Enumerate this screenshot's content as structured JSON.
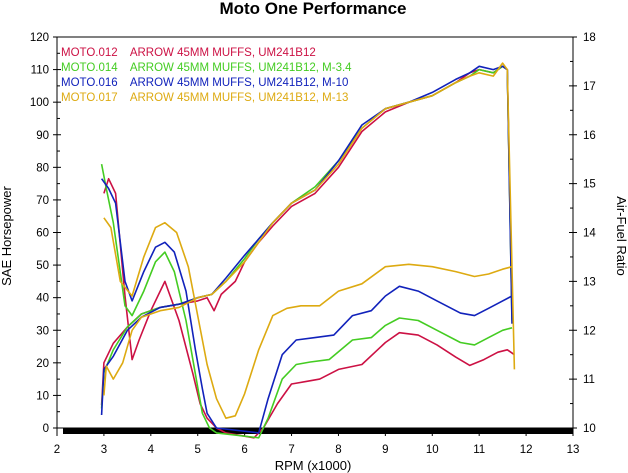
{
  "chart_data": {
    "type": "line",
    "title": "Moto One Performance",
    "xlabel": "RPM (x1000)",
    "ylabel": "SAE Horsepower",
    "y2label": "Air-Fuel Ratio",
    "xlim": [
      2,
      13
    ],
    "ylim": [
      0,
      120
    ],
    "y2lim": [
      10,
      18
    ],
    "x_ticks": [
      "2",
      "3",
      "4",
      "5",
      "6",
      "7",
      "8",
      "9",
      "10",
      "11",
      "12",
      "13"
    ],
    "y_ticks": [
      "0",
      "10",
      "20",
      "30",
      "40",
      "50",
      "60",
      "70",
      "80",
      "90",
      "100",
      "110",
      "120"
    ],
    "y2_ticks": [
      "10",
      "11",
      "12",
      "13",
      "14",
      "15",
      "16",
      "17",
      "18"
    ],
    "grid": false,
    "legend": "top-left",
    "series": [
      {
        "name": "MOTO.012    ARROW 45MM MUFFS, UM241B12",
        "color": "#cc1144",
        "hp": [
          [
            2.95,
            7
          ],
          [
            3.0,
            20
          ],
          [
            3.2,
            26
          ],
          [
            3.5,
            31
          ],
          [
            3.8,
            35
          ],
          [
            4.2,
            37
          ],
          [
            4.6,
            38
          ],
          [
            5.0,
            39
          ],
          [
            5.2,
            40
          ],
          [
            5.35,
            36
          ],
          [
            5.5,
            41
          ],
          [
            5.8,
            45
          ],
          [
            6.0,
            51
          ],
          [
            6.3,
            57
          ],
          [
            6.6,
            62
          ],
          [
            7.0,
            68
          ],
          [
            7.5,
            72
          ],
          [
            8.0,
            80
          ],
          [
            8.5,
            91
          ],
          [
            9.0,
            97
          ],
          [
            9.5,
            100
          ],
          [
            10.0,
            102
          ],
          [
            10.5,
            106
          ],
          [
            10.8,
            109
          ],
          [
            11.0,
            110
          ],
          [
            11.3,
            109
          ],
          [
            11.5,
            111
          ],
          [
            11.6,
            110
          ],
          [
            11.7,
            36
          ]
        ],
        "afr": [
          [
            3.0,
            14.8
          ],
          [
            3.1,
            15.1
          ],
          [
            3.25,
            14.8
          ],
          [
            3.45,
            12.7
          ],
          [
            3.6,
            11.4
          ],
          [
            3.75,
            11.8
          ],
          [
            4.0,
            12.4
          ],
          [
            4.3,
            13.0
          ],
          [
            4.6,
            12.2
          ],
          [
            4.9,
            11.1
          ],
          [
            5.05,
            10.5
          ],
          [
            5.2,
            10.2
          ],
          [
            5.4,
            10.0
          ],
          [
            5.6,
            9.9
          ],
          [
            6.2,
            9.8
          ],
          [
            6.4,
            10.0
          ],
          [
            6.7,
            10.5
          ],
          [
            7.0,
            10.9
          ],
          [
            7.3,
            10.95
          ],
          [
            7.6,
            11.0
          ],
          [
            8.0,
            11.2
          ],
          [
            8.5,
            11.3
          ],
          [
            9.0,
            11.75
          ],
          [
            9.3,
            11.95
          ],
          [
            9.7,
            11.9
          ],
          [
            10.1,
            11.7
          ],
          [
            10.5,
            11.45
          ],
          [
            10.8,
            11.28
          ],
          [
            11.1,
            11.4
          ],
          [
            11.4,
            11.55
          ],
          [
            11.6,
            11.6
          ],
          [
            11.75,
            11.5
          ]
        ]
      },
      {
        "name": "MOTO.014    ARROW 45MM MUFFS, UM241B12, M-3.4",
        "color": "#44cc22",
        "hp": [
          [
            2.95,
            6
          ],
          [
            3.0,
            17
          ],
          [
            3.2,
            24
          ],
          [
            3.5,
            31
          ],
          [
            3.8,
            35
          ],
          [
            4.2,
            37
          ],
          [
            4.6,
            38
          ],
          [
            5.0,
            40
          ],
          [
            5.3,
            41
          ],
          [
            5.6,
            45
          ],
          [
            6.0,
            52
          ],
          [
            6.3,
            58
          ],
          [
            6.6,
            63
          ],
          [
            7.0,
            69
          ],
          [
            7.5,
            74
          ],
          [
            8.0,
            82
          ],
          [
            8.5,
            92
          ],
          [
            9.0,
            98
          ],
          [
            9.5,
            100
          ],
          [
            10.0,
            102
          ],
          [
            10.5,
            106
          ],
          [
            10.8,
            108
          ],
          [
            11.0,
            110
          ],
          [
            11.3,
            109
          ],
          [
            11.5,
            111
          ],
          [
            11.6,
            110
          ],
          [
            11.7,
            33
          ]
        ],
        "afr": [
          [
            2.95,
            15.4
          ],
          [
            3.05,
            14.9
          ],
          [
            3.2,
            14.2
          ],
          [
            3.45,
            12.5
          ],
          [
            3.6,
            12.3
          ],
          [
            3.85,
            12.8
          ],
          [
            4.1,
            13.4
          ],
          [
            4.3,
            13.6
          ],
          [
            4.5,
            13.2
          ],
          [
            4.75,
            12.2
          ],
          [
            4.95,
            11.1
          ],
          [
            5.1,
            10.3
          ],
          [
            5.25,
            10.0
          ],
          [
            5.4,
            9.9
          ],
          [
            6.3,
            9.8
          ],
          [
            6.5,
            10.2
          ],
          [
            6.8,
            11.0
          ],
          [
            7.1,
            11.3
          ],
          [
            7.4,
            11.35
          ],
          [
            7.8,
            11.4
          ],
          [
            8.3,
            11.8
          ],
          [
            8.7,
            11.85
          ],
          [
            9.0,
            12.1
          ],
          [
            9.3,
            12.25
          ],
          [
            9.7,
            12.2
          ],
          [
            10.1,
            12.0
          ],
          [
            10.6,
            11.75
          ],
          [
            10.9,
            11.7
          ],
          [
            11.2,
            11.85
          ],
          [
            11.5,
            12.0
          ],
          [
            11.7,
            12.05
          ]
        ]
      },
      {
        "name": "MOTO.016    ARROW 45MM MUFFS, UM241B12, M-10",
        "color": "#1122bb",
        "hp": [
          [
            2.95,
            4
          ],
          [
            3.0,
            18
          ],
          [
            3.2,
            22
          ],
          [
            3.5,
            30
          ],
          [
            3.8,
            34
          ],
          [
            4.2,
            37
          ],
          [
            4.6,
            38
          ],
          [
            5.0,
            40
          ],
          [
            5.3,
            41
          ],
          [
            5.6,
            46
          ],
          [
            6.0,
            53
          ],
          [
            6.3,
            58
          ],
          [
            6.6,
            63
          ],
          [
            7.0,
            69
          ],
          [
            7.5,
            73
          ],
          [
            8.0,
            82
          ],
          [
            8.5,
            93
          ],
          [
            9.0,
            98
          ],
          [
            9.5,
            100
          ],
          [
            10.0,
            103
          ],
          [
            10.5,
            107
          ],
          [
            10.8,
            109
          ],
          [
            11.0,
            111
          ],
          [
            11.3,
            110
          ],
          [
            11.5,
            111
          ],
          [
            11.6,
            110
          ],
          [
            11.7,
            32
          ]
        ],
        "afr": [
          [
            2.95,
            15.1
          ],
          [
            3.1,
            14.9
          ],
          [
            3.25,
            14.6
          ],
          [
            3.45,
            13.0
          ],
          [
            3.6,
            12.6
          ],
          [
            3.85,
            13.2
          ],
          [
            4.1,
            13.7
          ],
          [
            4.3,
            13.8
          ],
          [
            4.5,
            13.6
          ],
          [
            4.75,
            12.8
          ],
          [
            4.95,
            11.6
          ],
          [
            5.1,
            10.8
          ],
          [
            5.2,
            10.3
          ],
          [
            5.4,
            10.0
          ],
          [
            6.3,
            9.9
          ],
          [
            6.5,
            10.6
          ],
          [
            6.8,
            11.5
          ],
          [
            7.1,
            11.8
          ],
          [
            7.5,
            11.85
          ],
          [
            7.9,
            11.9
          ],
          [
            8.3,
            12.3
          ],
          [
            8.7,
            12.4
          ],
          [
            9.0,
            12.7
          ],
          [
            9.3,
            12.9
          ],
          [
            9.7,
            12.8
          ],
          [
            10.1,
            12.6
          ],
          [
            10.6,
            12.35
          ],
          [
            10.9,
            12.3
          ],
          [
            11.2,
            12.45
          ],
          [
            11.5,
            12.6
          ],
          [
            11.7,
            12.7
          ]
        ]
      },
      {
        "name": "MOTO.017    ARROW 45MM MUFFS, UM241B12, M-13",
        "color": "#ddaa11",
        "hp": [
          [
            3.0,
            10
          ],
          [
            3.05,
            19
          ],
          [
            3.2,
            15
          ],
          [
            3.4,
            20
          ],
          [
            3.6,
            30
          ],
          [
            3.8,
            34
          ],
          [
            4.2,
            36
          ],
          [
            4.6,
            37
          ],
          [
            5.0,
            40
          ],
          [
            5.3,
            41
          ],
          [
            5.6,
            45
          ],
          [
            6.0,
            51
          ],
          [
            6.3,
            57
          ],
          [
            6.6,
            63
          ],
          [
            7.0,
            69
          ],
          [
            7.5,
            73
          ],
          [
            8.0,
            81
          ],
          [
            8.5,
            92
          ],
          [
            9.0,
            98
          ],
          [
            9.5,
            100
          ],
          [
            10.0,
            102
          ],
          [
            10.5,
            106
          ],
          [
            10.8,
            108
          ],
          [
            11.0,
            109
          ],
          [
            11.3,
            108
          ],
          [
            11.5,
            112
          ],
          [
            11.6,
            110
          ],
          [
            11.75,
            18
          ]
        ],
        "afr": [
          [
            3.0,
            14.3
          ],
          [
            3.15,
            14.1
          ],
          [
            3.35,
            13.0
          ],
          [
            3.6,
            12.7
          ],
          [
            3.85,
            13.5
          ],
          [
            4.1,
            14.1
          ],
          [
            4.3,
            14.2
          ],
          [
            4.55,
            14.0
          ],
          [
            4.8,
            13.3
          ],
          [
            5.0,
            12.3
          ],
          [
            5.2,
            11.3
          ],
          [
            5.4,
            10.6
          ],
          [
            5.6,
            10.2
          ],
          [
            5.8,
            10.25
          ],
          [
            6.0,
            10.7
          ],
          [
            6.3,
            11.6
          ],
          [
            6.6,
            12.3
          ],
          [
            6.9,
            12.45
          ],
          [
            7.2,
            12.5
          ],
          [
            7.6,
            12.5
          ],
          [
            8.0,
            12.8
          ],
          [
            8.5,
            12.95
          ],
          [
            9.0,
            13.3
          ],
          [
            9.5,
            13.35
          ],
          [
            10.0,
            13.3
          ],
          [
            10.5,
            13.2
          ],
          [
            10.9,
            13.1
          ],
          [
            11.2,
            13.15
          ],
          [
            11.5,
            13.25
          ],
          [
            11.7,
            13.3
          ]
        ]
      }
    ]
  }
}
